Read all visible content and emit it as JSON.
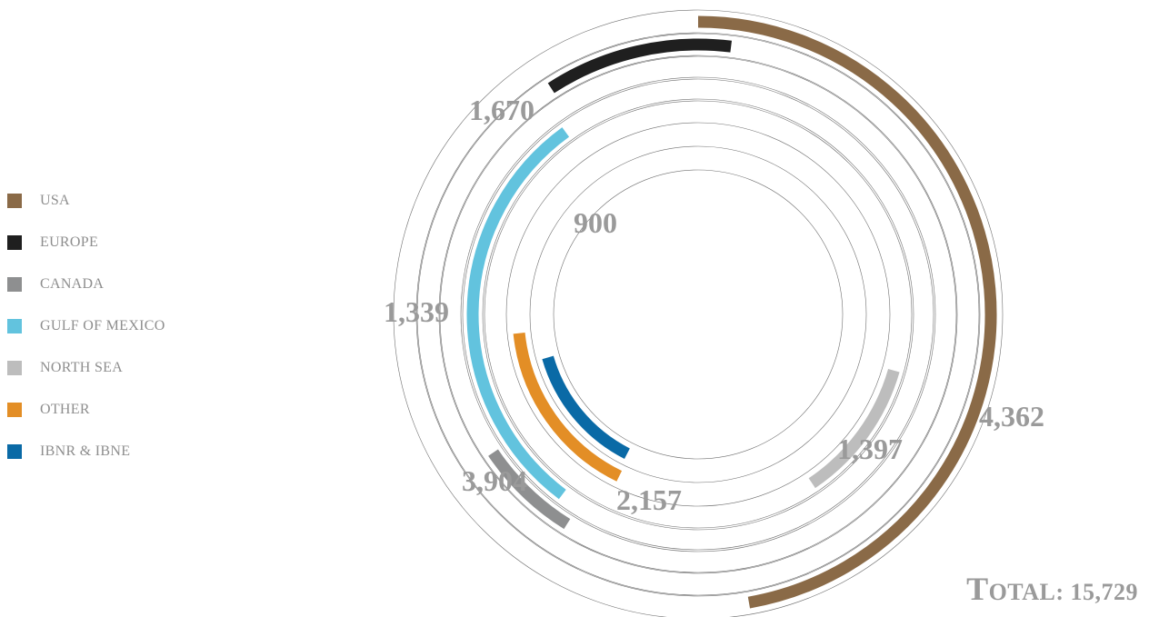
{
  "chart_data": {
    "type": "radial-bar",
    "series": [
      {
        "name": "USA",
        "value": 4362,
        "label": "4,362",
        "color": "#8a6a47"
      },
      {
        "name": "EUROPE",
        "value": 1670,
        "label": "1,670",
        "color": "#1f1f1f"
      },
      {
        "name": "CANADA",
        "value": 1339,
        "label": "1,339",
        "color": "#8e8f90"
      },
      {
        "name": "GULF OF MEXICO",
        "value": 3904,
        "label": "3,904",
        "color": "#62c3de"
      },
      {
        "name": "NORTH SEA",
        "value": 1397,
        "label": "1,397",
        "color": "#bdbdbd"
      },
      {
        "name": "OTHER",
        "value": 2157,
        "label": "2,157",
        "color": "#e38e26"
      },
      {
        "name": "IBNR & IBNE",
        "value": 900,
        "label": "900",
        "color": "#0a6aa6"
      }
    ],
    "legend_position": "left"
  },
  "total": {
    "prefix": "T",
    "rest": "OTAL: 15,729"
  }
}
